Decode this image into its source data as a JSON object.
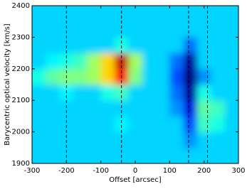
{
  "chart_data": {
    "type": "heatmap",
    "xlabel": "Offset [arcsec]",
    "ylabel": "Barycentric optical velocity [km/s]",
    "xlim": [
      -300,
      300
    ],
    "ylim": [
      1900,
      2400
    ],
    "xticks": [
      -300,
      -200,
      -100,
      0,
      100,
      200,
      300
    ],
    "yticks": [
      1900,
      2000,
      2100,
      2200,
      2300,
      2400
    ],
    "colormap": "jet",
    "zlim": [
      -1,
      2
    ],
    "x": [
      -280,
      -240,
      -200,
      -160,
      -120,
      -80,
      -40,
      0,
      40,
      80,
      120,
      160,
      200,
      240,
      280
    ],
    "y": [
      1925,
      1975,
      2025,
      2075,
      2125,
      2175,
      2225,
      2275,
      2325,
      2375
    ],
    "z": [
      [
        0,
        0,
        0,
        0,
        0,
        0,
        0,
        0,
        0,
        0,
        0,
        0,
        0,
        0,
        0
      ],
      [
        0,
        0,
        0,
        0,
        0,
        0,
        0,
        0,
        0,
        0,
        0,
        -0.2,
        0,
        0,
        0
      ],
      [
        0,
        0,
        0,
        0,
        0,
        0,
        0.1,
        0,
        0,
        0,
        0,
        -0.4,
        0.3,
        0.2,
        0
      ],
      [
        0,
        0,
        0,
        0,
        0,
        0,
        0,
        0,
        0,
        0,
        -0.2,
        -0.7,
        0.4,
        0.3,
        0
      ],
      [
        0,
        0,
        0.1,
        0,
        0,
        0.2,
        0.3,
        0,
        0,
        0,
        -0.3,
        -0.9,
        0.2,
        0,
        0
      ],
      [
        0.2,
        0.4,
        0.5,
        0.5,
        0.6,
        1.0,
        1.6,
        0.5,
        0,
        0,
        -0.4,
        -1.0,
        -0.2,
        0,
        0
      ],
      [
        0,
        0.1,
        0.2,
        0.3,
        0.6,
        1.0,
        1.8,
        0.6,
        0,
        0,
        -0.3,
        -0.9,
        0,
        0,
        0
      ],
      [
        0,
        0,
        0,
        0,
        0,
        0,
        0.2,
        0,
        0,
        0,
        0,
        -0.3,
        0,
        0,
        0
      ],
      [
        0,
        0,
        0,
        0,
        0,
        0,
        0,
        0,
        0,
        0,
        0,
        0,
        0,
        0,
        0
      ],
      [
        0,
        0,
        0,
        0,
        0,
        0,
        0,
        0,
        0,
        0,
        0,
        0,
        0,
        0,
        0
      ]
    ],
    "vlines": [
      -200,
      -40,
      155,
      210
    ]
  }
}
